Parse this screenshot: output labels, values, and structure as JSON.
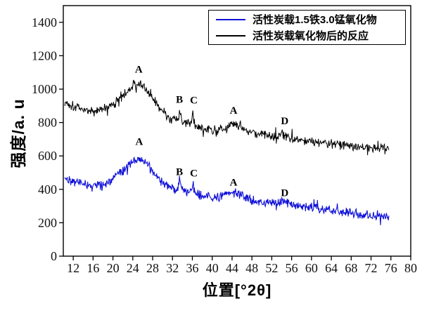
{
  "chart_data": {
    "type": "line",
    "title": "",
    "xlabel": "位置[°2θ]",
    "ylabel": "强度/a. u",
    "xlim": [
      10,
      80
    ],
    "ylim": [
      0,
      1500
    ],
    "x_ticks": [
      12,
      16,
      20,
      24,
      28,
      32,
      36,
      40,
      44,
      48,
      52,
      56,
      60,
      64,
      68,
      72,
      76,
      80
    ],
    "y_ticks": [
      0,
      200,
      400,
      600,
      800,
      1000,
      1200,
      1400
    ],
    "grid": false,
    "legend_position": "top-right",
    "frame_color": "#000000",
    "tick_label_color": "#111111",
    "annotation_color": "#000000",
    "series": [
      {
        "name": "活性炭载1.5铁3.0锰氧化物",
        "color": "#0f10d8",
        "line_width": 1.1,
        "seed": 42,
        "noise_amplitude": 33,
        "x_start": 10.3,
        "x_end": 75.6,
        "backbone": [
          [
            10.3,
            470
          ],
          [
            12,
            450
          ],
          [
            14,
            432
          ],
          [
            16,
            420
          ],
          [
            18,
            428
          ],
          [
            20,
            462
          ],
          [
            22,
            512
          ],
          [
            23.5,
            556
          ],
          [
            25,
            588
          ],
          [
            26,
            576
          ],
          [
            27,
            540
          ],
          [
            28,
            508
          ],
          [
            29,
            470
          ],
          [
            30,
            440
          ],
          [
            31,
            420
          ],
          [
            32,
            408
          ],
          [
            33,
            404
          ],
          [
            34,
            392
          ],
          [
            35,
            386
          ],
          [
            36,
            380
          ],
          [
            37,
            368
          ],
          [
            38,
            358
          ],
          [
            39,
            352
          ],
          [
            40,
            350
          ],
          [
            41,
            352
          ],
          [
            42,
            362
          ],
          [
            43,
            374
          ],
          [
            44,
            384
          ],
          [
            45,
            376
          ],
          [
            46,
            360
          ],
          [
            47,
            346
          ],
          [
            48,
            336
          ],
          [
            50,
            322
          ],
          [
            52,
            318
          ],
          [
            53,
            325
          ],
          [
            54,
            331
          ],
          [
            55,
            320
          ],
          [
            56,
            310
          ],
          [
            58,
            300
          ],
          [
            60,
            292
          ],
          [
            62,
            282
          ],
          [
            64,
            272
          ],
          [
            66,
            263
          ],
          [
            68,
            256
          ],
          [
            70,
            250
          ],
          [
            72,
            246
          ],
          [
            74,
            242
          ],
          [
            75.6,
            240
          ]
        ],
        "spikes": [
          {
            "x": 33.5,
            "height": 72,
            "sigma": 0.16
          },
          {
            "x": 36.1,
            "height": 58,
            "sigma": 0.16
          }
        ],
        "annotations": [
          {
            "label": "A",
            "x": 25.3,
            "y": 688
          },
          {
            "label": "B",
            "x": 33.4,
            "y": 507
          },
          {
            "label": "C",
            "x": 36.3,
            "y": 498
          },
          {
            "label": "A",
            "x": 44.3,
            "y": 443
          },
          {
            "label": "D",
            "x": 54.6,
            "y": 380
          }
        ]
      },
      {
        "name": "活性炭载氧化物后的反应",
        "color": "#000000",
        "line_width": 1.0,
        "seed": 1337,
        "noise_amplitude": 34,
        "x_start": 10.3,
        "x_end": 75.6,
        "backbone": [
          [
            10.3,
            920
          ],
          [
            12,
            900
          ],
          [
            14,
            880
          ],
          [
            16,
            868
          ],
          [
            18,
            876
          ],
          [
            20,
            912
          ],
          [
            22,
            958
          ],
          [
            23.5,
            1002
          ],
          [
            25,
            1032
          ],
          [
            26,
            1016
          ],
          [
            27,
            978
          ],
          [
            28,
            945
          ],
          [
            29,
            908
          ],
          [
            30,
            868
          ],
          [
            31,
            838
          ],
          [
            32,
            818
          ],
          [
            33,
            812
          ],
          [
            34,
            798
          ],
          [
            35,
            790
          ],
          [
            36,
            784
          ],
          [
            37,
            770
          ],
          [
            38,
            762
          ],
          [
            39,
            756
          ],
          [
            40,
            754
          ],
          [
            41,
            756
          ],
          [
            42,
            768
          ],
          [
            43,
            784
          ],
          [
            44,
            800
          ],
          [
            45,
            790
          ],
          [
            46,
            772
          ],
          [
            47,
            752
          ],
          [
            48,
            740
          ],
          [
            50,
            724
          ],
          [
            52,
            718
          ],
          [
            53,
            726
          ],
          [
            54,
            734
          ],
          [
            55,
            722
          ],
          [
            56,
            710
          ],
          [
            58,
            700
          ],
          [
            60,
            690
          ],
          [
            62,
            681
          ],
          [
            64,
            673
          ],
          [
            66,
            666
          ],
          [
            68,
            660
          ],
          [
            70,
            656
          ],
          [
            72,
            653
          ],
          [
            74,
            650
          ],
          [
            75.6,
            648
          ]
        ],
        "spikes": [
          {
            "x": 33.5,
            "height": 70,
            "sigma": 0.16
          },
          {
            "x": 36.1,
            "height": 85,
            "sigma": 0.16
          }
        ],
        "annotations": [
          {
            "label": "A",
            "x": 25.2,
            "y": 1120
          },
          {
            "label": "B",
            "x": 33.4,
            "y": 940
          },
          {
            "label": "C",
            "x": 36.3,
            "y": 935
          },
          {
            "label": "A",
            "x": 44.3,
            "y": 875
          },
          {
            "label": "D",
            "x": 54.6,
            "y": 810
          }
        ]
      }
    ]
  }
}
